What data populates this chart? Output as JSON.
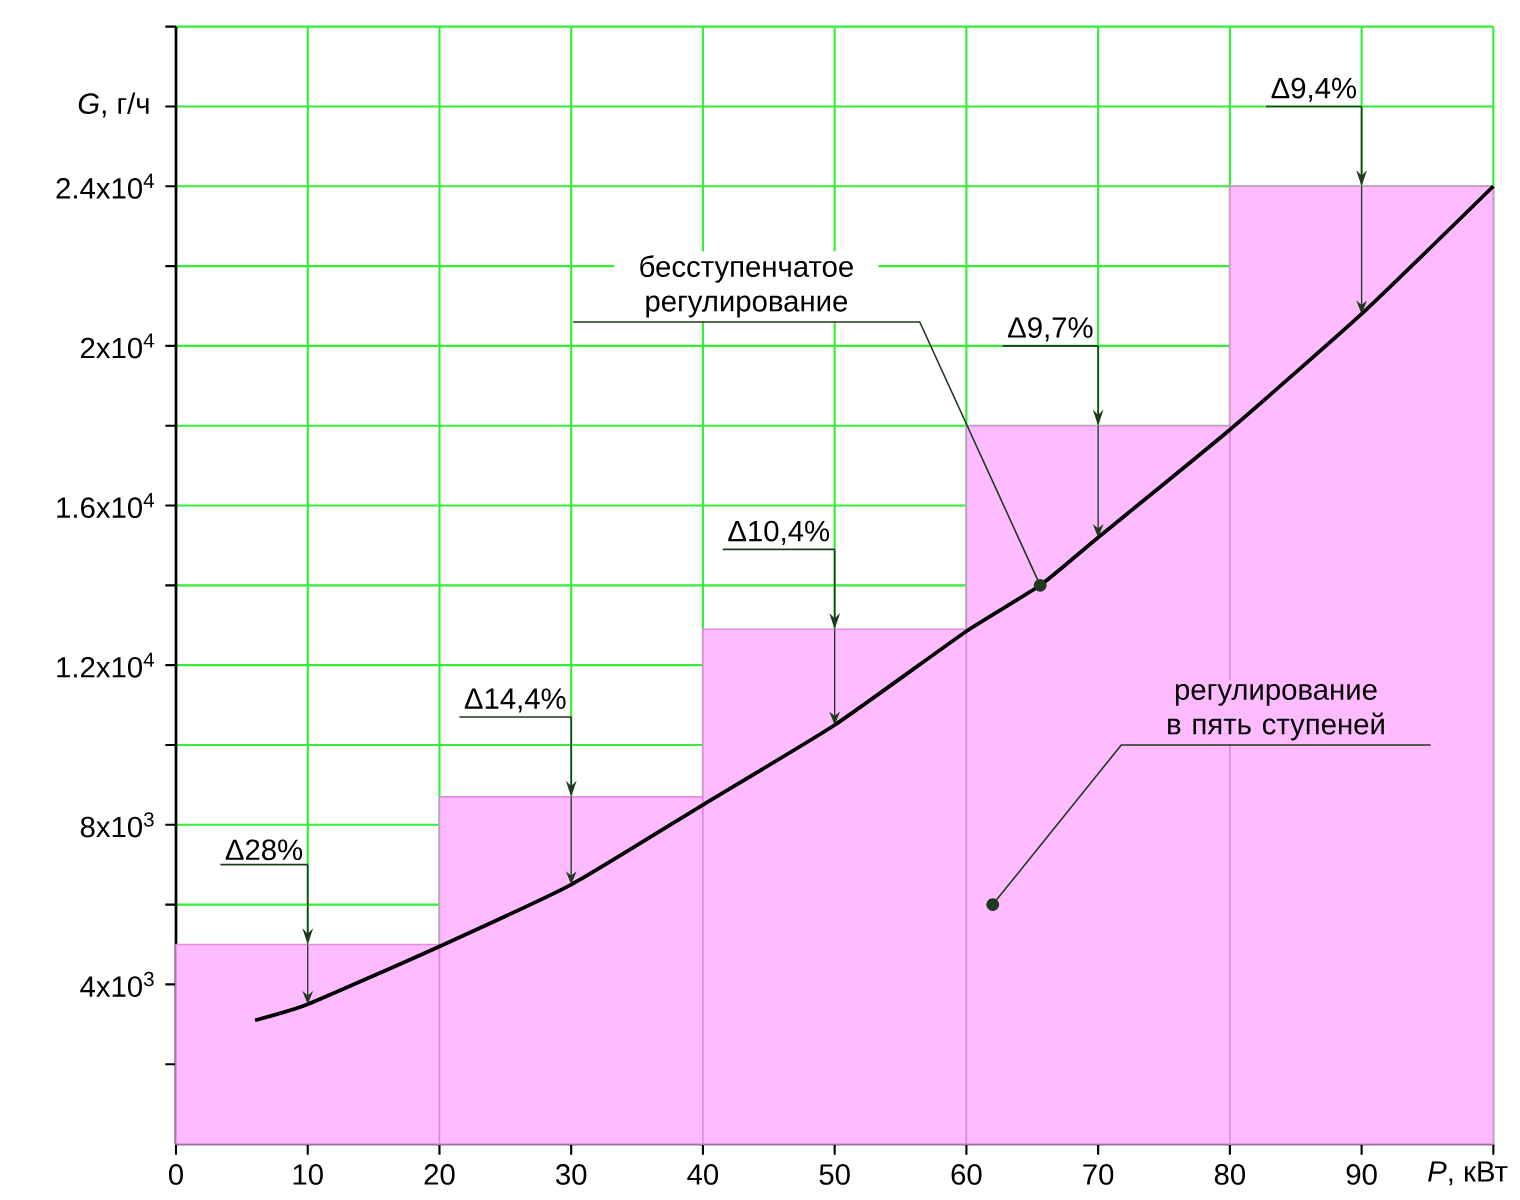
{
  "chart_data": {
    "type": "line",
    "xlabel": "*P*, кВт",
    "ylabel": "*G*, г/ч",
    "xlim": [
      0,
      100
    ],
    "ylim": [
      0,
      28000
    ],
    "xticks": [
      0,
      10,
      20,
      30,
      40,
      50,
      60,
      70,
      80,
      90,
      {
        "value": 100,
        "label": null
      }
    ],
    "yticks": [
      {
        "value": 2000,
        "label": null
      },
      {
        "value": 4000,
        "label": "4x10$^{3}$"
      },
      {
        "value": 6000,
        "label": null
      },
      {
        "value": 8000,
        "label": "8x10$^{3}$"
      },
      {
        "value": 10000,
        "label": null
      },
      {
        "value": 12000,
        "label": "1.2x10$^{4}$"
      },
      {
        "value": 14000,
        "label": null
      },
      {
        "value": 16000,
        "label": "1.6x10$^{4}$"
      },
      {
        "value": 18000,
        "label": null
      },
      {
        "value": 20000,
        "label": "2x10$^{4}$"
      },
      {
        "value": 22000,
        "label": null
      },
      {
        "value": 24000,
        "label": "2.4x10$^{4}$"
      },
      {
        "value": 26000,
        "label": null
      },
      {
        "value": 28000,
        "label": null
      }
    ],
    "grid": true,
    "series": [
      {
        "type": "histogram",
        "name": "регулирование в пять ступеней",
        "color": "#ffbbff",
        "bins": [
          0,
          20,
          40,
          60,
          80,
          100
        ],
        "values": [
          5000,
          8700,
          12900,
          18000,
          24000
        ]
      },
      {
        "name": "бесступенчатое регулирование",
        "color": "#000000",
        "x": [
          6,
          10,
          20,
          30,
          40,
          50,
          60,
          65.6,
          70,
          80,
          90,
          100
        ],
        "values": [
          3100,
          3500,
          4950,
          6500,
          8500,
          10500,
          12850,
          14000,
          15200,
          17900,
          20800,
          24000
        ]
      }
    ],
    "annotations": [
      "Δ28%",
      "Δ14,4%",
      "Δ10,4%",
      "Δ9,7%",
      "Δ9,4%"
    ]
  }
}
